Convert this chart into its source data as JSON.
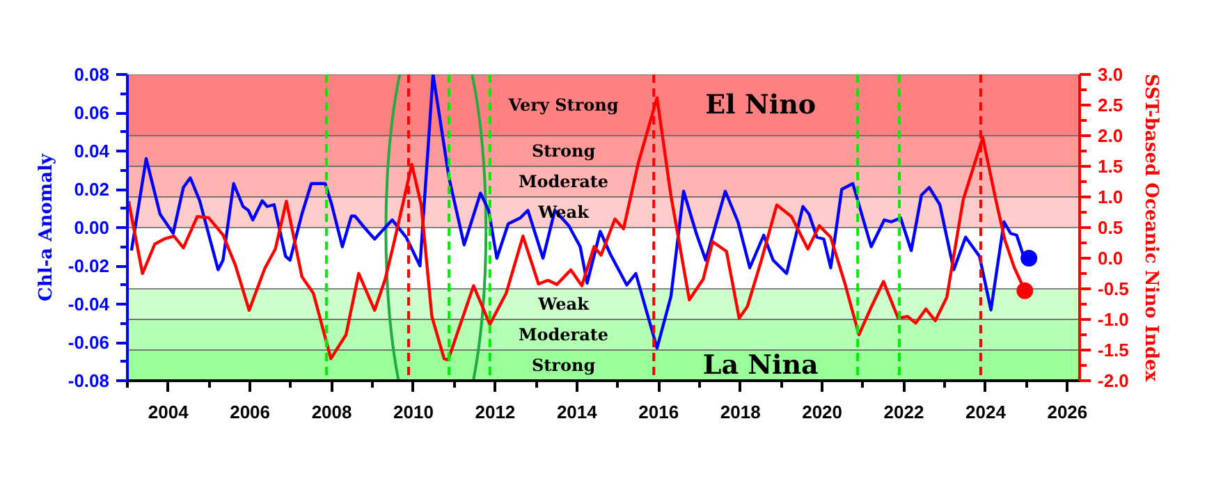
{
  "chart_data": {
    "type": "line",
    "ylabel": "Chl-a Anomaly",
    "y2label": "SST-based Oceanic Nino Index",
    "annotations": [
      "El Nino",
      "La Nina"
    ],
    "xlim": [
      2003.0,
      2026.3
    ],
    "xticks": [
      {
        "value": 2003,
        "label": null
      },
      2004,
      {
        "value": 2005,
        "label": null
      },
      2006,
      {
        "value": 2007,
        "label": null
      },
      2008,
      {
        "value": 2009,
        "label": null
      },
      2010,
      {
        "value": 2011,
        "label": null
      },
      2012,
      {
        "value": 2013,
        "label": null
      },
      2014,
      {
        "value": 2015,
        "label": null
      },
      2016,
      {
        "value": 2017,
        "label": null
      },
      2018,
      {
        "value": 2019,
        "label": null
      },
      2020,
      {
        "value": 2021,
        "label": null
      },
      2022,
      {
        "value": 2023,
        "label": null
      },
      2024,
      {
        "value": 2025,
        "label": null
      },
      2026
    ],
    "ylim": [
      -0.08,
      0.08
    ],
    "yticks": [
      {
        "value": -0.08,
        "label": "-0.08"
      },
      {
        "value": -0.07,
        "label": null
      },
      {
        "value": -0.06,
        "label": "-0.06"
      },
      {
        "value": -0.05,
        "label": null
      },
      {
        "value": -0.04,
        "label": "-0.04"
      },
      {
        "value": -0.03,
        "label": null
      },
      {
        "value": -0.02,
        "label": "-0.02"
      },
      {
        "value": -0.01,
        "label": null
      },
      {
        "value": 0,
        "label": "0.00"
      },
      {
        "value": 0.01,
        "label": null
      },
      {
        "value": 0.02,
        "label": "0.02"
      },
      {
        "value": 0.03,
        "label": null
      },
      {
        "value": 0.04,
        "label": "0.04"
      },
      {
        "value": 0.05,
        "label": null
      },
      {
        "value": 0.06,
        "label": "0.06"
      },
      {
        "value": 0.07,
        "label": null
      },
      {
        "value": 0.08,
        "label": "0.08"
      }
    ],
    "y2lim": [
      -2.0,
      3.0
    ],
    "y2ticks": [
      {
        "value": -2.0,
        "label": "-2.0"
      },
      {
        "value": -1.75,
        "label": null
      },
      {
        "value": -1.5,
        "label": "-1.5"
      },
      {
        "value": -1.25,
        "label": null
      },
      {
        "value": -1.0,
        "label": "-1.0"
      },
      {
        "value": -0.75,
        "label": null
      },
      {
        "value": -0.5,
        "label": "-0.5"
      },
      {
        "value": -0.25,
        "label": null
      },
      {
        "value": 0,
        "label": "0.0"
      },
      {
        "value": 0.25,
        "label": null
      },
      {
        "value": 0.5,
        "label": "0.5"
      },
      {
        "value": 0.75,
        "label": null
      },
      {
        "value": 1.0,
        "label": "1.0"
      },
      {
        "value": 1.25,
        "label": null
      },
      {
        "value": 1.5,
        "label": "1.5"
      },
      {
        "value": 1.75,
        "label": null
      },
      {
        "value": 2.0,
        "label": "2.0"
      },
      {
        "value": 2.25,
        "label": null
      },
      {
        "value": 2.5,
        "label": "2.5"
      },
      {
        "value": 2.75,
        "label": null
      },
      {
        "value": 3.0,
        "label": "3.0"
      }
    ],
    "bands": [
      {
        "axis": "y2",
        "from": 2.0,
        "to": 3.0,
        "label": "Very Strong",
        "color": "#ff8080"
      },
      {
        "axis": "y2",
        "from": 1.5,
        "to": 2.0,
        "label": "Strong",
        "color": "#ff9999"
      },
      {
        "axis": "y2",
        "from": 1.0,
        "to": 1.5,
        "label": "Moderate",
        "color": "#ffb3b3"
      },
      {
        "axis": "y2",
        "from": 0.5,
        "to": 1.0,
        "label": "Weak",
        "color": "#ffcccc"
      },
      {
        "axis": "y2",
        "from": -1.0,
        "to": -0.5,
        "label": "Weak",
        "color": "#ccffcc"
      },
      {
        "axis": "y2",
        "from": -1.5,
        "to": -1.0,
        "label": "Moderate",
        "color": "#b3ffb3"
      },
      {
        "axis": "y2",
        "from": -2.0,
        "to": -1.5,
        "label": "Strong",
        "color": "#99ff99"
      }
    ],
    "ref_lines": [
      {
        "axis": "x",
        "value": 2007.87,
        "color": "#00ee00",
        "line_style": "dashed"
      },
      {
        "axis": "x",
        "value": 2009.88,
        "color": "#ff0000",
        "line_style": "dashed"
      },
      {
        "axis": "x",
        "value": 2010.87,
        "color": "#00ee00",
        "line_style": "dashed"
      },
      {
        "axis": "x",
        "value": 2011.87,
        "color": "#00ee00",
        "line_style": "dashed"
      },
      {
        "axis": "x",
        "value": 2015.88,
        "color": "#ff0000",
        "line_style": "dashed"
      },
      {
        "axis": "x",
        "value": 2020.87,
        "color": "#00ee00",
        "line_style": "dashed"
      },
      {
        "axis": "x",
        "value": 2021.89,
        "color": "#00ee00",
        "line_style": "dashed"
      },
      {
        "axis": "x",
        "value": 2023.88,
        "color": "#ff0000",
        "line_style": "dashed"
      }
    ],
    "line_style": "solid",
    "series": [
      {
        "color": "#0000ff",
        "x": [
          2003.1,
          2003.46,
          2003.8,
          2004.12,
          2004.37,
          2004.54,
          2004.77,
          2005.22,
          2005.34,
          2005.6,
          2005.83,
          2005.96,
          2006.07,
          2006.3,
          2006.42,
          2006.59,
          2006.87,
          2006.98,
          2007.27,
          2007.5,
          2007.84,
          2008.0,
          2008.26,
          2008.48,
          2008.57,
          2008.8,
          2009.05,
          2009.48,
          2009.82,
          2010.16,
          2010.48,
          2010.87,
          2011.24,
          2011.64,
          2011.84,
          2012.04,
          2012.32,
          2012.61,
          2012.8,
          2013.17,
          2013.46,
          2013.8,
          2014.08,
          2014.25,
          2014.57,
          2014.82,
          2015.22,
          2015.44,
          2015.96,
          2016.3,
          2016.61,
          2016.92,
          2017.15,
          2017.63,
          2017.94,
          2018.23,
          2018.57,
          2018.8,
          2019.13,
          2019.53,
          2019.68,
          2019.87,
          2020.04,
          2020.21,
          2020.48,
          2020.75,
          2021.2,
          2021.52,
          2021.69,
          2021.92,
          2022.18,
          2022.43,
          2022.62,
          2022.88,
          2023.22,
          2023.51,
          2023.85,
          2024.13,
          2024.45,
          2024.61,
          2024.76,
          2024.93,
          2025.06
        ],
        "values": [
          -0.012,
          0.036,
          0.007,
          -0.003,
          0.021,
          0.026,
          0.014,
          -0.022,
          -0.017,
          0.023,
          0.011,
          0.009,
          0.004,
          0.014,
          0.011,
          0.012,
          -0.015,
          -0.017,
          0.007,
          0.023,
          0.023,
          0.012,
          -0.01,
          0.006,
          0.006,
          0.0,
          -0.006,
          0.004,
          -0.005,
          -0.02,
          0.08,
          0.026,
          -0.009,
          0.018,
          0.009,
          -0.016,
          0.002,
          0.005,
          0.009,
          -0.016,
          0.009,
          0.001,
          -0.01,
          -0.029,
          -0.002,
          -0.014,
          -0.03,
          -0.024,
          -0.063,
          -0.036,
          0.019,
          -0.003,
          -0.017,
          0.019,
          0.003,
          -0.021,
          -0.004,
          -0.017,
          -0.024,
          0.011,
          0.007,
          -0.005,
          -0.006,
          -0.021,
          0.02,
          0.023,
          -0.01,
          0.004,
          0.003,
          0.005,
          -0.012,
          0.017,
          0.021,
          0.012,
          -0.022,
          -0.005,
          -0.015,
          -0.043,
          0.003,
          -0.003,
          -0.004,
          -0.015,
          -0.016
        ]
      },
      {
        "axis": "y2",
        "color": "#ff0000",
        "x": [
          2003.03,
          2003.37,
          2003.67,
          2003.92,
          2004.14,
          2004.37,
          2004.71,
          2004.99,
          2005.34,
          2005.64,
          2005.98,
          2006.36,
          2006.62,
          2006.89,
          2007.27,
          2007.55,
          2007.98,
          2008.35,
          2008.66,
          2009.05,
          2009.31,
          2009.54,
          2009.96,
          2010.19,
          2010.45,
          2010.75,
          2010.85,
          2011.47,
          2011.87,
          2012.27,
          2012.68,
          2013.06,
          2013.29,
          2013.51,
          2013.85,
          2014.12,
          2014.42,
          2014.59,
          2014.93,
          2015.14,
          2015.5,
          2015.96,
          2016.3,
          2016.75,
          2017.09,
          2017.32,
          2017.66,
          2017.97,
          2018.17,
          2018.51,
          2018.89,
          2019.25,
          2019.65,
          2019.93,
          2020.21,
          2020.56,
          2020.9,
          2021.18,
          2021.5,
          2021.86,
          2022.09,
          2022.29,
          2022.54,
          2022.77,
          2023.05,
          2023.45,
          2023.93,
          2024.25,
          2024.47,
          2024.7,
          2024.96
        ],
        "values": [
          0.93,
          -0.25,
          0.23,
          0.32,
          0.36,
          0.17,
          0.68,
          0.66,
          0.38,
          -0.11,
          -0.85,
          -0.17,
          0.15,
          0.93,
          -0.3,
          -0.57,
          -1.64,
          -1.25,
          -0.25,
          -0.85,
          -0.34,
          0.3,
          1.53,
          0.87,
          -0.95,
          -1.64,
          -1.66,
          -0.45,
          -1.08,
          -0.57,
          0.36,
          -0.42,
          -0.36,
          -0.43,
          -0.19,
          -0.45,
          0.19,
          0.05,
          0.64,
          0.48,
          1.55,
          2.62,
          1.02,
          -0.68,
          -0.34,
          0.27,
          0.11,
          -0.98,
          -0.79,
          -0.04,
          0.87,
          0.68,
          0.15,
          0.53,
          0.34,
          -0.42,
          -1.25,
          -0.83,
          -0.38,
          -0.98,
          -0.95,
          -1.06,
          -0.83,
          -1.02,
          -0.64,
          0.95,
          1.97,
          0.95,
          0.3,
          -0.15,
          -0.53
        ]
      },
      {
        "type": "scatter",
        "marker": "circle",
        "color": "#0000ff",
        "x": [
          2025.06
        ],
        "values": [
          -0.016
        ]
      },
      {
        "type": "scatter",
        "marker": "circle",
        "axis": "y2",
        "color": "#ff0000",
        "x": [
          2024.96
        ],
        "values": [
          -0.53
        ]
      }
    ]
  }
}
